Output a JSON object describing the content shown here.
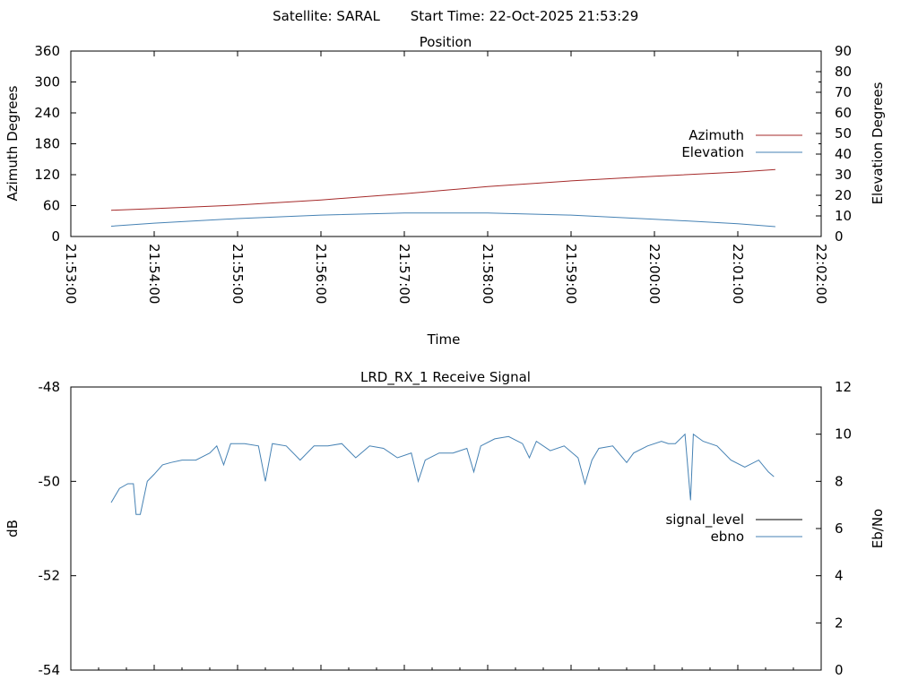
{
  "header": {
    "satellite": "Satellite: SARAL",
    "start_time": "Start Time: 22-Oct-2025 21:53:29"
  },
  "chart_data": [
    {
      "type": "line",
      "title": "Position",
      "xlabel": "Time",
      "ylabel": "Azimuth Degrees",
      "y2label": "Elevation Degrees",
      "x_ticks": [
        "21:53:00",
        "21:54:00",
        "21:55:00",
        "21:56:00",
        "21:57:00",
        "21:58:00",
        "21:59:00",
        "22:00:00",
        "22:01:00",
        "22:02:00"
      ],
      "y_ticks": [
        "0",
        "60",
        "120",
        "180",
        "240",
        "300",
        "360"
      ],
      "y2_ticks": [
        "0",
        "10",
        "20",
        "30",
        "40",
        "50",
        "60",
        "70",
        "80",
        "90"
      ],
      "xlim": [
        "21:53:00",
        "22:02:00"
      ],
      "ylim": [
        0,
        360
      ],
      "y2lim": [
        0,
        90
      ],
      "legend_position": "right",
      "series": [
        {
          "name": "Azimuth",
          "axis": "left",
          "color": "#a52a2a",
          "points": [
            [
              "21:53:29",
              51
            ],
            [
              "21:54:00",
              54
            ],
            [
              "21:55:00",
              61
            ],
            [
              "21:56:00",
              71
            ],
            [
              "21:57:00",
              83
            ],
            [
              "21:58:00",
              97
            ],
            [
              "21:59:00",
              108
            ],
            [
              "22:00:00",
              117
            ],
            [
              "22:01:00",
              125
            ],
            [
              "22:01:27",
              130
            ]
          ]
        },
        {
          "name": "Elevation",
          "axis": "right",
          "color": "#4682b4",
          "points": [
            [
              "21:53:29",
              5
            ],
            [
              "21:54:00",
              6.5
            ],
            [
              "21:55:00",
              8.7
            ],
            [
              "21:56:00",
              10.4
            ],
            [
              "21:57:00",
              11.4
            ],
            [
              "21:58:00",
              11.4
            ],
            [
              "21:59:00",
              10.4
            ],
            [
              "22:00:00",
              8.4
            ],
            [
              "22:01:00",
              6.2
            ],
            [
              "22:01:27",
              4.8
            ]
          ]
        }
      ]
    },
    {
      "type": "line",
      "title": "LRD_RX_1 Receive Signal",
      "ylabel": "dB",
      "y2label": "Eb/No",
      "y_ticks": [
        "-48",
        "-50",
        "-52",
        "-54"
      ],
      "y2_ticks": [
        "0",
        "2",
        "4",
        "6",
        "8",
        "10",
        "12"
      ],
      "xlim": [
        "21:53:00",
        "22:02:00"
      ],
      "ylim": [
        -54,
        -48
      ],
      "y2lim": [
        0,
        12
      ],
      "legend_position": "right",
      "series": [
        {
          "name": "signal_level",
          "axis": "left",
          "color": "#000000",
          "points": []
        },
        {
          "name": "ebno",
          "axis": "right",
          "color": "#4682b4",
          "points": [
            [
              "21:53:29",
              7.1
            ],
            [
              "21:53:35",
              7.7
            ],
            [
              "21:53:41",
              7.9
            ],
            [
              "21:53:45",
              7.9
            ],
            [
              "21:53:47",
              6.6
            ],
            [
              "21:53:50",
              6.6
            ],
            [
              "21:53:55",
              8.0
            ],
            [
              "21:54:00",
              8.3
            ],
            [
              "21:54:06",
              8.7
            ],
            [
              "21:54:12",
              8.8
            ],
            [
              "21:54:20",
              8.9
            ],
            [
              "21:54:30",
              8.9
            ],
            [
              "21:54:40",
              9.2
            ],
            [
              "21:54:45",
              9.5
            ],
            [
              "21:54:50",
              8.7
            ],
            [
              "21:54:55",
              9.6
            ],
            [
              "21:55:05",
              9.6
            ],
            [
              "21:55:15",
              9.5
            ],
            [
              "21:55:20",
              8.0
            ],
            [
              "21:55:25",
              9.6
            ],
            [
              "21:55:35",
              9.5
            ],
            [
              "21:55:45",
              8.9
            ],
            [
              "21:55:55",
              9.5
            ],
            [
              "21:56:05",
              9.5
            ],
            [
              "21:56:15",
              9.6
            ],
            [
              "21:56:25",
              9.0
            ],
            [
              "21:56:35",
              9.5
            ],
            [
              "21:56:45",
              9.4
            ],
            [
              "21:56:55",
              9.0
            ],
            [
              "21:57:05",
              9.2
            ],
            [
              "21:57:10",
              8.0
            ],
            [
              "21:57:15",
              8.9
            ],
            [
              "21:57:25",
              9.2
            ],
            [
              "21:57:35",
              9.2
            ],
            [
              "21:57:45",
              9.4
            ],
            [
              "21:57:50",
              8.4
            ],
            [
              "21:57:55",
              9.5
            ],
            [
              "21:58:05",
              9.8
            ],
            [
              "21:58:15",
              9.9
            ],
            [
              "21:58:25",
              9.6
            ],
            [
              "21:58:30",
              9.0
            ],
            [
              "21:58:35",
              9.7
            ],
            [
              "21:58:45",
              9.3
            ],
            [
              "21:58:55",
              9.5
            ],
            [
              "21:59:05",
              9.0
            ],
            [
              "21:59:10",
              7.9
            ],
            [
              "21:59:15",
              8.9
            ],
            [
              "21:59:20",
              9.4
            ],
            [
              "21:59:30",
              9.5
            ],
            [
              "21:59:40",
              8.8
            ],
            [
              "21:59:45",
              9.2
            ],
            [
              "21:59:55",
              9.5
            ],
            [
              "22:00:05",
              9.7
            ],
            [
              "22:00:10",
              9.6
            ],
            [
              "22:00:15",
              9.6
            ],
            [
              "22:00:22",
              10.0
            ],
            [
              "22:00:26",
              7.2
            ],
            [
              "22:00:28",
              10.0
            ],
            [
              "22:00:35",
              9.7
            ],
            [
              "22:00:45",
              9.5
            ],
            [
              "22:00:55",
              8.9
            ],
            [
              "22:01:05",
              8.6
            ],
            [
              "22:01:15",
              8.9
            ],
            [
              "22:01:22",
              8.4
            ],
            [
              "22:01:26",
              8.2
            ]
          ]
        }
      ]
    }
  ]
}
